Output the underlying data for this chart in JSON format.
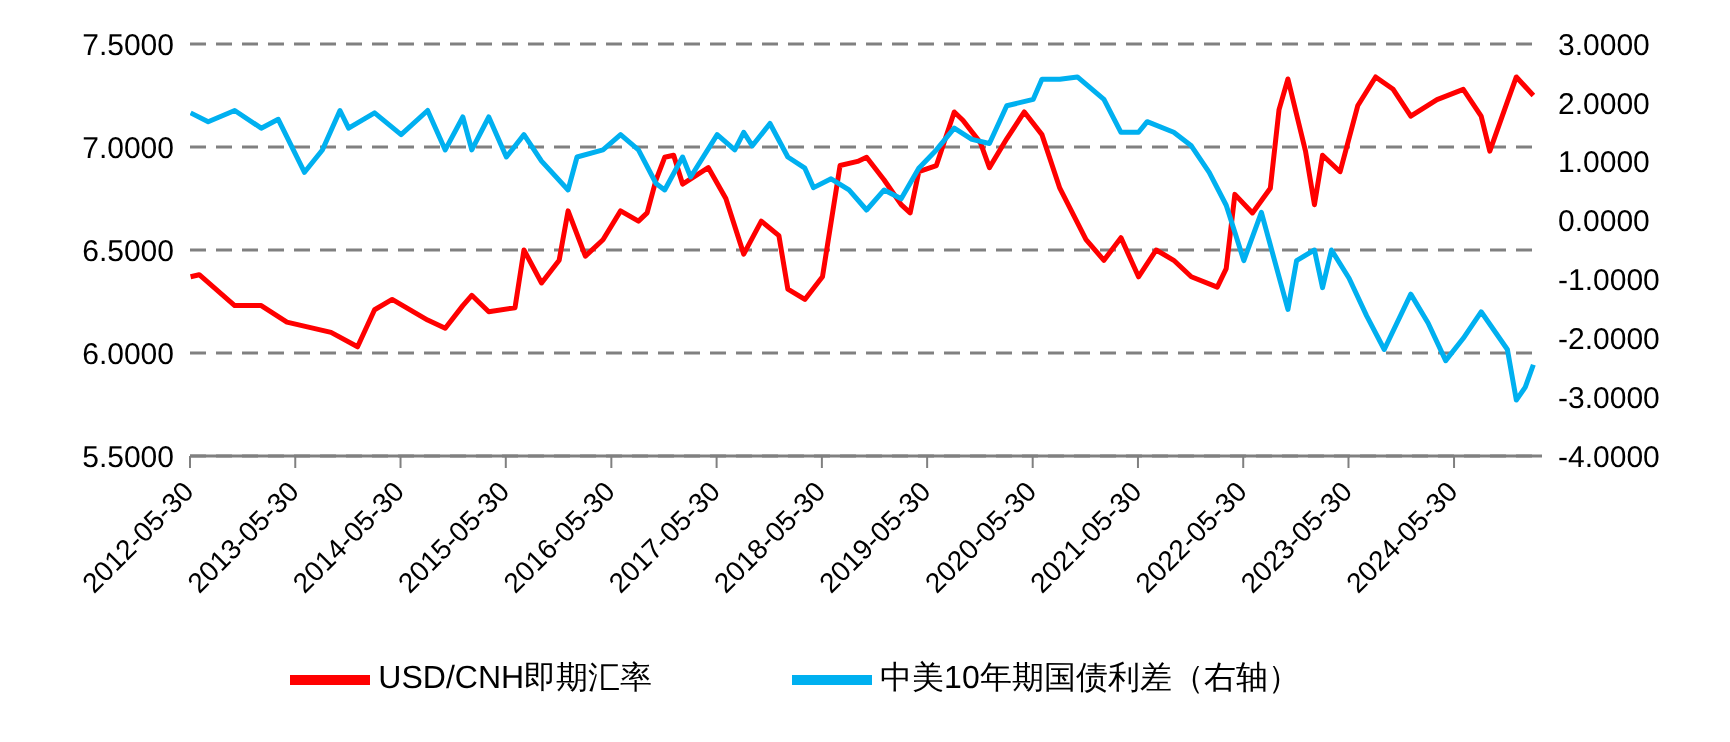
{
  "chart_data": {
    "type": "line",
    "xlim": [
      "2012-05-30",
      "2025-03-31"
    ],
    "xticks": [
      "2012-05-30",
      "2013-05-30",
      "2014-05-30",
      "2015-05-30",
      "2016-05-30",
      "2017-05-30",
      "2018-05-30",
      "2019-05-30",
      "2020-05-30",
      "2021-05-30",
      "2022-05-30",
      "2023-05-30",
      "2024-05-30"
    ],
    "ylim": [
      5.5,
      7.5
    ],
    "yticks": [
      {
        "value": 5.5,
        "label": "5.5000"
      },
      {
        "value": 6,
        "label": "6.0000"
      },
      {
        "value": 6.5,
        "label": "6.5000"
      },
      {
        "value": 7,
        "label": "7.0000"
      },
      {
        "value": 7.5,
        "label": "7.5000"
      }
    ],
    "y2lim": [
      -4,
      3
    ],
    "y2ticks": [
      {
        "value": -4,
        "label": "-4.0000"
      },
      {
        "value": -3,
        "label": "-3.0000"
      },
      {
        "value": -2,
        "label": "-2.0000"
      },
      {
        "value": -1,
        "label": "-1.0000"
      },
      {
        "value": 0,
        "label": "0.0000"
      },
      {
        "value": 1,
        "label": "1.0000"
      },
      {
        "value": 2,
        "label": "2.0000"
      },
      {
        "value": 3,
        "label": "3.0000"
      }
    ],
    "grid": "y",
    "legend": "bottom",
    "marker": "none",
    "line_style": "solid",
    "series": [
      {
        "name": "USD/CNH即期汇率",
        "color": "#ff0000",
        "x": [
          "2012-06",
          "2012-07",
          "2012-11",
          "2013-02",
          "2013-05",
          "2013-10",
          "2014-01",
          "2014-03",
          "2014-05",
          "2014-09",
          "2014-11",
          "2015-01",
          "2015-02",
          "2015-04",
          "2015-07",
          "2015-08",
          "2015-10",
          "2015-12",
          "2016-01",
          "2016-03",
          "2016-05",
          "2016-07",
          "2016-09",
          "2016-10",
          "2016-11",
          "2016-12",
          "2017-01",
          "2017-02",
          "2017-05",
          "2017-07",
          "2017-09",
          "2017-11",
          "2018-01",
          "2018-02",
          "2018-04",
          "2018-06",
          "2018-08",
          "2018-10",
          "2018-11",
          "2019-01",
          "2019-03",
          "2019-04",
          "2019-05",
          "2019-07",
          "2019-09",
          "2019-10",
          "2019-12",
          "2020-01",
          "2020-03",
          "2020-05",
          "2020-07",
          "2020-09",
          "2020-12",
          "2021-02",
          "2021-04",
          "2021-06",
          "2021-08",
          "2021-10",
          "2021-12",
          "2022-03",
          "2022-04",
          "2022-05",
          "2022-07",
          "2022-09",
          "2022-10",
          "2022-11",
          "2023-01",
          "2023-02",
          "2023-03",
          "2023-05",
          "2023-07",
          "2023-09",
          "2023-11",
          "2024-01",
          "2024-04",
          "2024-07",
          "2024-09",
          "2024-10",
          "2024-12",
          "2025-01",
          "2025-03"
        ],
        "values": [
          6.37,
          6.38,
          6.23,
          6.23,
          6.15,
          6.1,
          6.03,
          6.21,
          6.26,
          6.16,
          6.12,
          6.23,
          6.28,
          6.2,
          6.22,
          6.5,
          6.34,
          6.45,
          6.69,
          6.47,
          6.55,
          6.69,
          6.64,
          6.68,
          6.84,
          6.95,
          6.96,
          6.82,
          6.9,
          6.75,
          6.48,
          6.64,
          6.57,
          6.31,
          6.26,
          6.37,
          6.91,
          6.93,
          6.95,
          6.84,
          6.72,
          6.68,
          6.88,
          6.91,
          7.17,
          7.13,
          7.02,
          6.9,
          7.04,
          7.17,
          7.06,
          6.8,
          6.55,
          6.45,
          6.56,
          6.37,
          6.5,
          6.45,
          6.37,
          6.32,
          6.41,
          6.77,
          6.68,
          6.8,
          7.18,
          7.33,
          6.98,
          6.72,
          6.96,
          6.88,
          7.2,
          7.34,
          7.28,
          7.15,
          7.23,
          7.28,
          7.15,
          6.98,
          7.22,
          7.34,
          7.25
        ]
      },
      {
        "name": "中美10年期国债利差（右轴）",
        "color": "#00b0f0",
        "axis": "y2",
        "x": [
          "2012-06",
          "2012-08",
          "2012-11",
          "2013-02",
          "2013-04",
          "2013-07",
          "2013-09",
          "2013-11",
          "2013-12",
          "2014-03",
          "2014-06",
          "2014-09",
          "2014-11",
          "2015-01",
          "2015-02",
          "2015-04",
          "2015-06",
          "2015-08",
          "2015-10",
          "2016-01",
          "2016-02",
          "2016-05",
          "2016-07",
          "2016-09",
          "2016-11",
          "2016-12",
          "2017-02",
          "2017-03",
          "2017-06",
          "2017-08",
          "2017-09",
          "2017-10",
          "2017-12",
          "2018-02",
          "2018-04",
          "2018-05",
          "2018-07",
          "2018-09",
          "2018-11",
          "2019-01",
          "2019-03",
          "2019-05",
          "2019-07",
          "2019-09",
          "2019-11",
          "2020-01",
          "2020-03",
          "2020-06",
          "2020-07",
          "2020-09",
          "2020-11",
          "2021-02",
          "2021-04",
          "2021-06",
          "2021-07",
          "2021-10",
          "2021-12",
          "2022-02",
          "2022-04",
          "2022-05",
          "2022-06",
          "2022-08",
          "2022-11",
          "2022-12",
          "2023-02",
          "2023-03",
          "2023-04",
          "2023-06",
          "2023-08",
          "2023-10",
          "2024-01",
          "2024-03",
          "2024-05",
          "2024-07",
          "2024-09",
          "2024-12",
          "2025-01",
          "2025-02",
          "2025-03"
        ],
        "values": [
          1.83,
          1.68,
          1.87,
          1.57,
          1.72,
          0.82,
          1.2,
          1.87,
          1.57,
          1.83,
          1.46,
          1.87,
          1.2,
          1.76,
          1.2,
          1.76,
          1.08,
          1.46,
          1.01,
          0.52,
          1.08,
          1.2,
          1.46,
          1.2,
          0.63,
          0.52,
          1.08,
          0.74,
          1.46,
          1.2,
          1.5,
          1.27,
          1.65,
          1.08,
          0.89,
          0.56,
          0.71,
          0.52,
          0.18,
          0.52,
          0.37,
          0.89,
          1.2,
          1.57,
          1.38,
          1.31,
          1.95,
          2.06,
          2.4,
          2.4,
          2.44,
          2.06,
          1.5,
          1.5,
          1.68,
          1.5,
          1.27,
          0.82,
          0.26,
          -0.2,
          -0.68,
          0.14,
          -1.51,
          -0.68,
          -0.5,
          -1.14,
          -0.5,
          -0.98,
          -1.62,
          -2.19,
          -1.25,
          -1.74,
          -2.38,
          -2,
          -1.55,
          -2.19,
          -3.05,
          -2.83,
          -2.45
        ]
      }
    ]
  }
}
